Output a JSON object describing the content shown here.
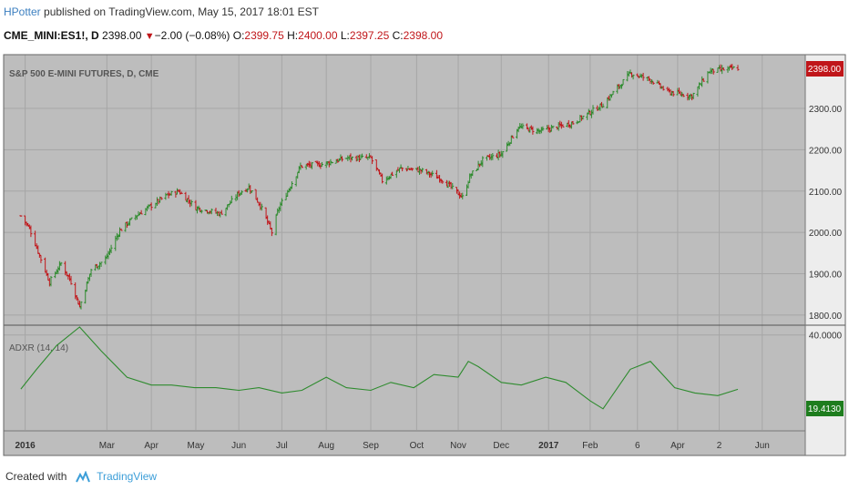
{
  "header": {
    "author": "HPotter",
    "published": "published on TradingView.com, May 15, 2017 18:01 EST",
    "symbol": "CME_MINI:ES1!, D",
    "last": "2398.00",
    "change": "−2.00 (−0.08%)",
    "o_label": "O:",
    "o_value": "2399.75",
    "h_label": "H:",
    "h_value": "2400.00",
    "l_label": "L:",
    "l_value": "2397.25",
    "c_label": "C:",
    "c_value": "2398.00"
  },
  "footer": {
    "created_with": "Created with",
    "brand": "TradingView"
  },
  "colors": {
    "up": "#2e8b2e",
    "down": "#c0161a",
    "indicator": "#2e8b2e",
    "pane_bg": "#bdbdbd",
    "grid": "#a6a6a6"
  },
  "chart_data": [
    {
      "type": "candlestick",
      "title": "S&P 500 E-MINI FUTURES, D, CME",
      "ylim": [
        1780,
        2430
      ],
      "y_ticks": [
        1800,
        1900,
        2000,
        2100,
        2200,
        2300
      ],
      "last_price_label": "2398.00",
      "x_ticks": [
        "2016",
        "Mar",
        "Apr",
        "May",
        "Jun",
        "Jul",
        "Aug",
        "Sep",
        "Oct",
        "Nov",
        "Dec",
        "2017",
        "Feb",
        "6",
        "Apr",
        "2",
        "Jun"
      ],
      "close_path": {
        "x": [
          "2016-01-01",
          "2016-01-07",
          "2016-01-15",
          "2016-01-21",
          "2016-01-29",
          "2016-02-05",
          "2016-02-11",
          "2016-02-19",
          "2016-02-29",
          "2016-03-10",
          "2016-03-21",
          "2016-04-01",
          "2016-04-12",
          "2016-04-20",
          "2016-05-02",
          "2016-05-19",
          "2016-06-01",
          "2016-06-08",
          "2016-06-16",
          "2016-06-24",
          "2016-06-29",
          "2016-07-14",
          "2016-07-29",
          "2016-08-15",
          "2016-09-01",
          "2016-09-09",
          "2016-09-22",
          "2016-10-06",
          "2016-10-20",
          "2016-11-04",
          "2016-11-09",
          "2016-11-18",
          "2016-12-01",
          "2016-12-13",
          "2016-12-28",
          "2017-01-20",
          "2017-02-10",
          "2017-03-01",
          "2017-03-15",
          "2017-03-27",
          "2017-04-13",
          "2017-04-25",
          "2017-05-15"
        ],
        "y": [
          2040,
          2010,
          1935,
          1880,
          1925,
          1880,
          1820,
          1910,
          1935,
          2005,
          2040,
          2065,
          2090,
          2100,
          2060,
          2045,
          2095,
          2110,
          2065,
          2000,
          2060,
          2160,
          2165,
          2180,
          2180,
          2125,
          2155,
          2150,
          2130,
          2085,
          2135,
          2175,
          2190,
          2255,
          2245,
          2265,
          2310,
          2385,
          2370,
          2340,
          2330,
          2390,
          2398
        ]
      }
    },
    {
      "type": "line",
      "title": "ADXR (14, 14)",
      "y_ticks": [
        40.0
      ],
      "ylim": [
        4,
        43
      ],
      "last_value_label": "19.4130",
      "series": [
        {
          "x": [
            "2016-01-01",
            "2016-01-12",
            "2016-01-26",
            "2016-02-11",
            "2016-02-26",
            "2016-03-15",
            "2016-04-01",
            "2016-04-15",
            "2016-05-01",
            "2016-05-16",
            "2016-06-01",
            "2016-06-15",
            "2016-07-01",
            "2016-07-15",
            "2016-08-01",
            "2016-08-15",
            "2016-09-01",
            "2016-09-15",
            "2016-10-01",
            "2016-10-15",
            "2016-11-01",
            "2016-11-08",
            "2016-11-15",
            "2016-12-01",
            "2016-12-15",
            "2017-01-01",
            "2017-01-15",
            "2017-02-01",
            "2017-02-10",
            "2017-03-01",
            "2017-03-15",
            "2017-04-01",
            "2017-04-15",
            "2017-05-01",
            "2017-05-15"
          ],
          "y": [
            19.5,
            27,
            36,
            43,
            34,
            24,
            21,
            21,
            20,
            20,
            19,
            20,
            18,
            19,
            24,
            20,
            19,
            22,
            20,
            25,
            24,
            30,
            28,
            22,
            21,
            24,
            22,
            15,
            12,
            27,
            30,
            20,
            18,
            17,
            19.4
          ]
        }
      ]
    }
  ]
}
